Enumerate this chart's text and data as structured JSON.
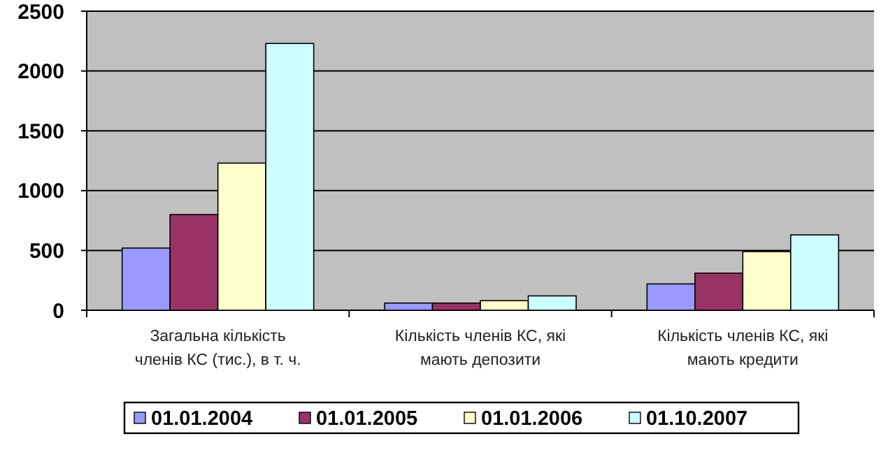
{
  "chart_data": {
    "type": "bar",
    "categories": [
      "Загальна кількість членів КС (тис.), в т. ч.",
      "Кількість членів КС, які мають депозити",
      "Кількість членів КС, які мають кредити"
    ],
    "series": [
      {
        "name": "01.01.2004",
        "color": "#9999ff",
        "values": [
          520,
          60,
          220
        ]
      },
      {
        "name": "01.01.2005",
        "color": "#993366",
        "values": [
          800,
          60,
          310
        ]
      },
      {
        "name": "01.01.2006",
        "color": "#ffffcc",
        "values": [
          1230,
          80,
          490
        ]
      },
      {
        "name": "01.10.2007",
        "color": "#ccffff",
        "values": [
          2230,
          120,
          630
        ]
      }
    ],
    "ylim": [
      0,
      2500
    ],
    "yticks": [
      0,
      500,
      1000,
      1500,
      2000,
      2500
    ],
    "grid": "y",
    "legend": "bottom"
  }
}
